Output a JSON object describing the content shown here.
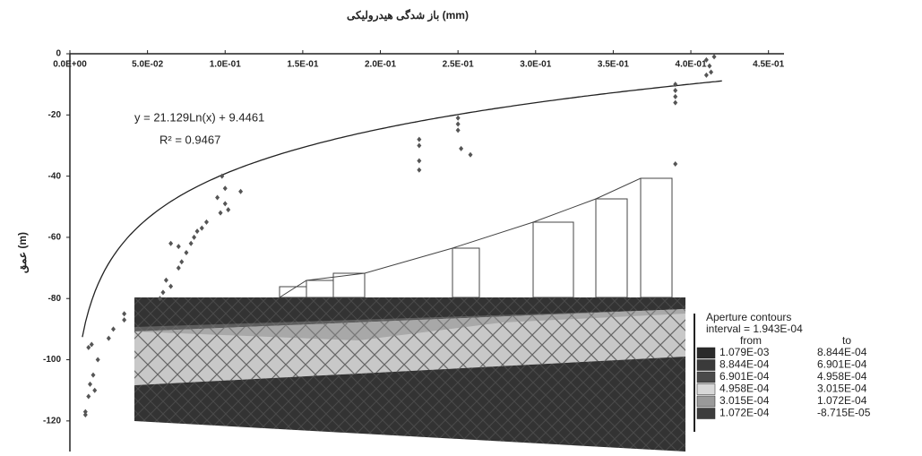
{
  "chart_data": {
    "type": "scatter",
    "title": "باز شدگی هیدرولیکی (mm)",
    "ylabel": "عمق (m)",
    "xlim": [
      0,
      0.46
    ],
    "ylim": [
      -130,
      0
    ],
    "xticks": [
      {
        "value": 0,
        "label": "0.0E+00"
      },
      {
        "value": 0.05,
        "label": "5.0E-02"
      },
      {
        "value": 0.1,
        "label": "1.0E-01"
      },
      {
        "value": 0.15,
        "label": "1.5E-01"
      },
      {
        "value": 0.2,
        "label": "2.0E-01"
      },
      {
        "value": 0.25,
        "label": "2.5E-01"
      },
      {
        "value": 0.3,
        "label": "3.0E-01"
      },
      {
        "value": 0.35,
        "label": "3.5E-01"
      },
      {
        "value": 0.4,
        "label": "4.0E-01"
      },
      {
        "value": 0.45,
        "label": "4.5E-01"
      }
    ],
    "yticks": [
      0,
      -20,
      -40,
      -60,
      -80,
      -100,
      -120
    ],
    "color": "#555555",
    "x": [
      0.01,
      0.01,
      0.012,
      0.013,
      0.015,
      0.012,
      0.014,
      0.016,
      0.018,
      0.025,
      0.028,
      0.035,
      0.035,
      0.058,
      0.06,
      0.062,
      0.065,
      0.07,
      0.072,
      0.075,
      0.078,
      0.08,
      0.082,
      0.085,
      0.088,
      0.07,
      0.065,
      0.095,
      0.097,
      0.098,
      0.1,
      0.1,
      0.102,
      0.11,
      0.225,
      0.225,
      0.225,
      0.225,
      0.25,
      0.25,
      0.25,
      0.252,
      0.258,
      0.39,
      0.39,
      0.39,
      0.39,
      0.39,
      0.41,
      0.412,
      0.413,
      0.415,
      0.41
    ],
    "values": [
      -118,
      -117,
      -112,
      -108,
      -105,
      -96,
      -95,
      -110,
      -100,
      -93,
      -90,
      -87,
      -85,
      -80,
      -78,
      -74,
      -76,
      -70,
      -68,
      -65,
      -62,
      -60,
      -58,
      -57,
      -55,
      -63,
      -62,
      -47,
      -52,
      -40,
      -44,
      -49,
      -51,
      -45,
      -28,
      -30,
      -35,
      -38,
      -21,
      -23,
      -25,
      -31,
      -33,
      -10,
      -12,
      -14,
      -16,
      -36,
      -2,
      -4,
      -6,
      -1,
      -7
    ],
    "trendline": {
      "a": 21.129,
      "b": 9.4461,
      "equation": "y = 21.129Ln(x) + 9.4461",
      "r2": "R² = 0.9467"
    },
    "legend": {
      "title": "Aperture contours",
      "interval": "interval = 1.943E-04",
      "from": "from",
      "to": "to",
      "rows": [
        [
          "1.079E-03",
          "8.844E-04"
        ],
        [
          "8.844E-04",
          "6.901E-04"
        ],
        [
          "6.901E-04",
          "4.958E-04"
        ],
        [
          "4.958E-04",
          "3.015E-04"
        ],
        [
          "3.015E-04",
          "1.072E-04"
        ],
        [
          "1.072E-04",
          "-8.715E-05"
        ]
      ],
      "colors": [
        "#2a2a2a",
        "#3a3a3a",
        "#4a4a4a",
        "#d8d8d8",
        "#9a9a9a",
        "#3c3c3c"
      ]
    }
  }
}
